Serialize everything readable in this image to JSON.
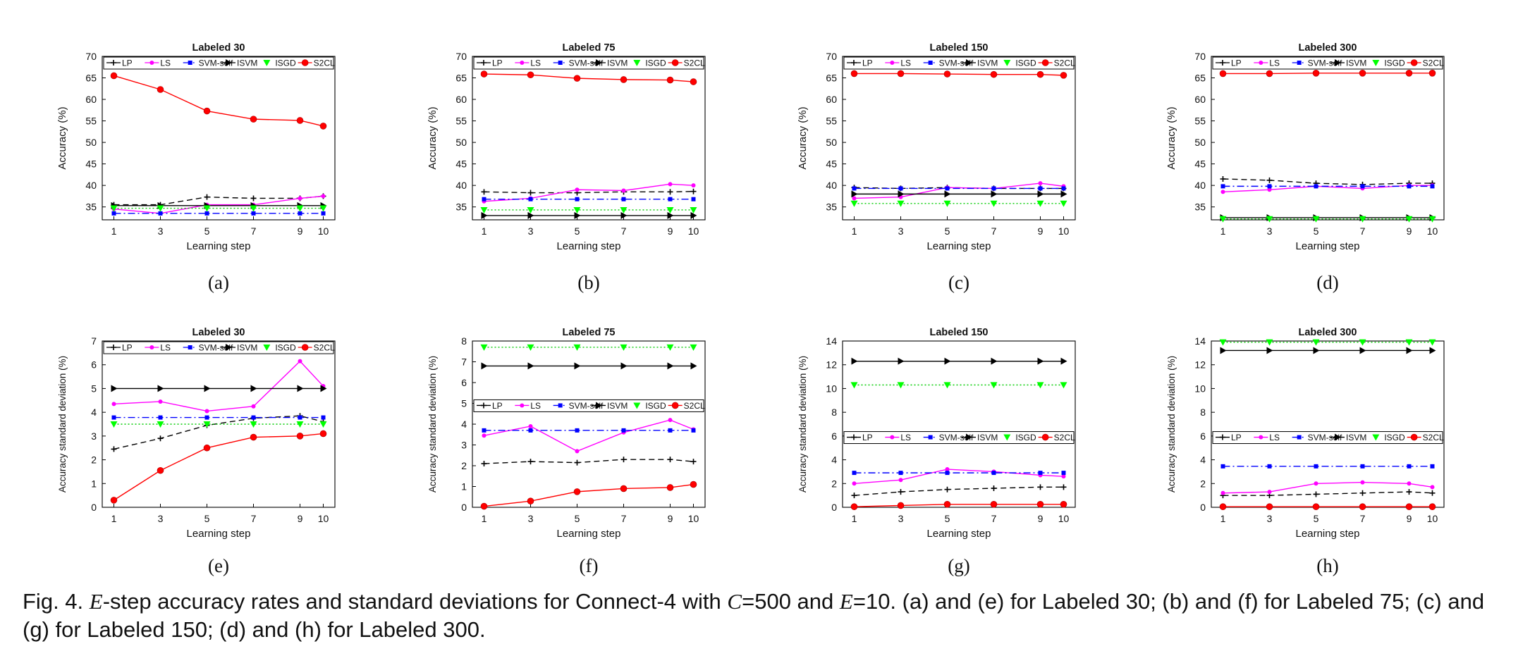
{
  "caption": {
    "prefix": "Fig. 4.",
    "var_e": "E",
    "part1": "-step accuracy rates and standard deviations for Connect-4 with",
    "var_c": "C",
    "part2": "=500 and",
    "var_e2": "E",
    "part3": "=10. (a) and (e) for Labeled 30; (b) and (f) for Labeled 75; (c) and (g) for Labeled 150; (d) and (h) for Labeled 300."
  },
  "legend_labels": [
    "LP",
    "LS",
    "SVM-self",
    "ISVM",
    "ISGD",
    "S2CL"
  ],
  "series_colors": {
    "LP": "#000000",
    "LS": "#ff00ff",
    "SVM-self": "#0000ff",
    "ISVM": "#000000",
    "ISGD": "#00ff00",
    "S2CL": "#ff0000"
  },
  "chart_data": [
    {
      "id": "a",
      "panel_label": "(a)",
      "type": "line",
      "title": "Labeled 30",
      "xlabel": "Learning step",
      "ylabel": "Accuracy (%)",
      "x": [
        1,
        3,
        5,
        7,
        9,
        10
      ],
      "ylim": [
        32,
        70
      ],
      "yticks": [
        35,
        40,
        45,
        50,
        55,
        60,
        65,
        70
      ],
      "legend_position": "top",
      "series": [
        {
          "name": "LP",
          "values": [
            35.5,
            35.5,
            37.3,
            37.0,
            37.0,
            37.5
          ]
        },
        {
          "name": "LS",
          "values": [
            34.5,
            33.5,
            35.5,
            35.5,
            37.0,
            37.5
          ]
        },
        {
          "name": "SVM-self",
          "values": [
            33.5,
            33.5,
            33.5,
            33.5,
            33.5,
            33.5
          ]
        },
        {
          "name": "ISVM",
          "values": [
            35.3,
            35.3,
            35.3,
            35.3,
            35.3,
            35.3
          ]
        },
        {
          "name": "ISGD",
          "values": [
            34.7,
            34.7,
            34.7,
            34.7,
            34.7,
            34.7
          ]
        },
        {
          "name": "S2CL",
          "values": [
            65.5,
            62.3,
            57.3,
            55.4,
            55.1,
            53.8
          ]
        }
      ]
    },
    {
      "id": "b",
      "panel_label": "(b)",
      "type": "line",
      "title": "Labeled 75",
      "xlabel": "Learning step",
      "ylabel": "Accuracy (%)",
      "x": [
        1,
        3,
        5,
        7,
        9,
        10
      ],
      "ylim": [
        32,
        70
      ],
      "yticks": [
        35,
        40,
        45,
        50,
        55,
        60,
        65,
        70
      ],
      "legend_position": "top",
      "series": [
        {
          "name": "LP",
          "values": [
            38.5,
            38.3,
            38.3,
            38.5,
            38.5,
            38.6
          ]
        },
        {
          "name": "LS",
          "values": [
            36.3,
            37.0,
            39.0,
            38.8,
            40.3,
            40.0
          ]
        },
        {
          "name": "SVM-self",
          "values": [
            36.8,
            36.8,
            36.8,
            36.8,
            36.8,
            36.8
          ]
        },
        {
          "name": "ISVM",
          "values": [
            33.0,
            33.0,
            33.0,
            33.0,
            33.0,
            33.0
          ]
        },
        {
          "name": "ISGD",
          "values": [
            34.3,
            34.3,
            34.3,
            34.3,
            34.3,
            34.3
          ]
        },
        {
          "name": "S2CL",
          "values": [
            65.9,
            65.7,
            64.9,
            64.6,
            64.5,
            64.1
          ]
        }
      ]
    },
    {
      "id": "c",
      "panel_label": "(c)",
      "type": "line",
      "title": "Labeled 150",
      "xlabel": "Learning step",
      "ylabel": "Accuracy (%)",
      "x": [
        1,
        3,
        5,
        7,
        9,
        10
      ],
      "ylim": [
        32,
        70
      ],
      "yticks": [
        35,
        40,
        45,
        50,
        55,
        60,
        65,
        70
      ],
      "legend_position": "top",
      "series": [
        {
          "name": "LP",
          "values": [
            39.5,
            39.3,
            39.5,
            39.3,
            39.3,
            39.3
          ]
        },
        {
          "name": "LS",
          "values": [
            37.0,
            37.3,
            39.5,
            39.3,
            40.5,
            39.8
          ]
        },
        {
          "name": "SVM-self",
          "values": [
            39.3,
            39.3,
            39.3,
            39.3,
            39.3,
            39.3
          ]
        },
        {
          "name": "ISVM",
          "values": [
            38.0,
            38.0,
            38.0,
            38.0,
            38.0,
            38.0
          ]
        },
        {
          "name": "ISGD",
          "values": [
            35.8,
            35.8,
            35.8,
            35.8,
            35.8,
            35.8
          ]
        },
        {
          "name": "S2CL",
          "values": [
            66.0,
            66.0,
            65.9,
            65.8,
            65.8,
            65.6
          ]
        }
      ]
    },
    {
      "id": "d",
      "panel_label": "(d)",
      "type": "line",
      "title": "Labeled 300",
      "xlabel": "Learning step",
      "ylabel": "Accuracy (%)",
      "x": [
        1,
        3,
        5,
        7,
        9,
        10
      ],
      "ylim": [
        32,
        70
      ],
      "yticks": [
        35,
        40,
        45,
        50,
        55,
        60,
        65,
        70
      ],
      "legend_position": "top",
      "series": [
        {
          "name": "LP",
          "values": [
            41.5,
            41.2,
            40.5,
            40.2,
            40.5,
            40.5
          ]
        },
        {
          "name": "LS",
          "values": [
            38.5,
            39.0,
            39.8,
            39.3,
            40.0,
            40.0
          ]
        },
        {
          "name": "SVM-self",
          "values": [
            39.8,
            39.8,
            39.8,
            39.8,
            39.8,
            39.8
          ]
        },
        {
          "name": "ISVM",
          "values": [
            32.5,
            32.5,
            32.5,
            32.5,
            32.5,
            32.5
          ]
        },
        {
          "name": "ISGD",
          "values": [
            32.2,
            32.2,
            32.2,
            32.2,
            32.2,
            32.2
          ]
        },
        {
          "name": "S2CL",
          "values": [
            66.0,
            66.0,
            66.1,
            66.1,
            66.1,
            66.1
          ]
        }
      ]
    },
    {
      "id": "e",
      "panel_label": "(e)",
      "type": "line",
      "title": "Labeled 30",
      "xlabel": "Learning step",
      "ylabel": "Accuracy standard deviation (%)",
      "x": [
        1,
        3,
        5,
        7,
        9,
        10
      ],
      "ylim": [
        0,
        7
      ],
      "yticks": [
        0,
        1,
        2,
        3,
        4,
        5,
        6,
        7
      ],
      "legend_position": "top",
      "series": [
        {
          "name": "LP",
          "values": [
            2.45,
            2.9,
            3.45,
            3.75,
            3.85,
            3.6
          ]
        },
        {
          "name": "LS",
          "values": [
            4.35,
            4.45,
            4.05,
            4.25,
            6.15,
            5.1
          ]
        },
        {
          "name": "SVM-self",
          "values": [
            3.78,
            3.78,
            3.78,
            3.78,
            3.78,
            3.78
          ]
        },
        {
          "name": "ISVM",
          "values": [
            5.0,
            5.0,
            5.0,
            5.0,
            5.0,
            5.0
          ]
        },
        {
          "name": "ISGD",
          "values": [
            3.5,
            3.5,
            3.5,
            3.5,
            3.5,
            3.5
          ]
        },
        {
          "name": "S2CL",
          "values": [
            0.3,
            1.55,
            2.5,
            2.95,
            3.0,
            3.1
          ]
        }
      ]
    },
    {
      "id": "f",
      "panel_label": "(f)",
      "type": "line",
      "title": "Labeled 75",
      "xlabel": "Learning step",
      "ylabel": "Accuracy standard deviation (%)",
      "x": [
        1,
        3,
        5,
        7,
        9,
        10
      ],
      "ylim": [
        0,
        8
      ],
      "yticks": [
        0,
        1,
        2,
        3,
        4,
        5,
        6,
        7,
        8
      ],
      "legend_position": "middle",
      "series": [
        {
          "name": "LP",
          "values": [
            2.1,
            2.2,
            2.15,
            2.3,
            2.3,
            2.2
          ]
        },
        {
          "name": "LS",
          "values": [
            3.45,
            3.9,
            2.7,
            3.6,
            4.2,
            3.75
          ]
        },
        {
          "name": "SVM-self",
          "values": [
            3.7,
            3.7,
            3.7,
            3.7,
            3.7,
            3.7
          ]
        },
        {
          "name": "ISVM",
          "values": [
            6.8,
            6.8,
            6.8,
            6.8,
            6.8,
            6.8
          ]
        },
        {
          "name": "ISGD",
          "values": [
            7.7,
            7.7,
            7.7,
            7.7,
            7.7,
            7.7
          ]
        },
        {
          "name": "S2CL",
          "values": [
            0.05,
            0.3,
            0.75,
            0.9,
            0.95,
            1.1
          ]
        }
      ]
    },
    {
      "id": "g",
      "panel_label": "(g)",
      "type": "line",
      "title": "Labeled 150",
      "xlabel": "Learning step",
      "ylabel": "Accuracy standard deviation (%)",
      "x": [
        1,
        3,
        5,
        7,
        9,
        10
      ],
      "ylim": [
        0,
        14
      ],
      "yticks": [
        0,
        2,
        4,
        6,
        8,
        10,
        12,
        14
      ],
      "legend_position": "middle",
      "series": [
        {
          "name": "LP",
          "values": [
            1.0,
            1.3,
            1.5,
            1.6,
            1.7,
            1.7
          ]
        },
        {
          "name": "LS",
          "values": [
            2.0,
            2.3,
            3.2,
            3.0,
            2.7,
            2.6
          ]
        },
        {
          "name": "SVM-self",
          "values": [
            2.9,
            2.9,
            2.9,
            2.9,
            2.9,
            2.9
          ]
        },
        {
          "name": "ISVM",
          "values": [
            12.3,
            12.3,
            12.3,
            12.3,
            12.3,
            12.3
          ]
        },
        {
          "name": "ISGD",
          "values": [
            10.3,
            10.3,
            10.3,
            10.3,
            10.3,
            10.3
          ]
        },
        {
          "name": "S2CL",
          "values": [
            0.05,
            0.15,
            0.25,
            0.25,
            0.25,
            0.25
          ]
        }
      ]
    },
    {
      "id": "h",
      "panel_label": "(h)",
      "type": "line",
      "title": "Labeled 300",
      "xlabel": "Learning step",
      "ylabel": "Accuracy standard deviation (%)",
      "x": [
        1,
        3,
        5,
        7,
        9,
        10
      ],
      "ylim": [
        0,
        14
      ],
      "yticks": [
        0,
        2,
        4,
        6,
        8,
        10,
        12,
        14
      ],
      "legend_position": "middle",
      "series": [
        {
          "name": "LP",
          "values": [
            1.0,
            1.0,
            1.1,
            1.2,
            1.3,
            1.2
          ]
        },
        {
          "name": "LS",
          "values": [
            1.2,
            1.3,
            2.0,
            2.1,
            2.0,
            1.7
          ]
        },
        {
          "name": "SVM-self",
          "values": [
            3.45,
            3.45,
            3.45,
            3.45,
            3.45,
            3.45
          ]
        },
        {
          "name": "ISVM",
          "values": [
            13.2,
            13.2,
            13.2,
            13.2,
            13.2,
            13.2
          ]
        },
        {
          "name": "ISGD",
          "values": [
            13.9,
            13.9,
            13.9,
            13.9,
            13.9,
            13.9
          ]
        },
        {
          "name": "S2CL",
          "values": [
            0.05,
            0.05,
            0.05,
            0.05,
            0.05,
            0.05
          ]
        }
      ]
    }
  ]
}
